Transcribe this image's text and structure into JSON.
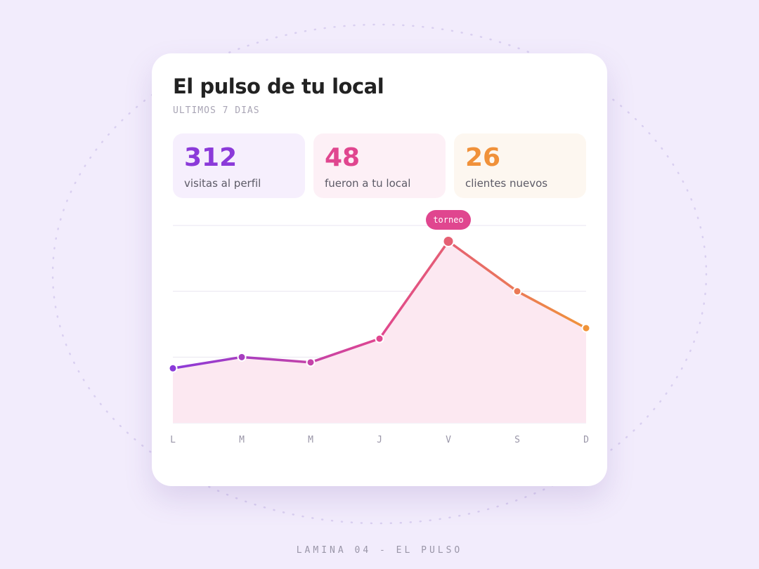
{
  "header": {
    "title": "El pulso de tu local",
    "subtitle": "ULTIMOS 7 DIAS"
  },
  "stats": [
    {
      "value": "312",
      "label": "visitas al perfil",
      "color": "#8b3ad9",
      "background": "#f6effd"
    },
    {
      "value": "48",
      "label": "fueron a tu local",
      "color": "#e0468f",
      "background": "#fdf0f6"
    },
    {
      "value": "26",
      "label": "clientes nuevos",
      "color": "#f0913a",
      "background": "#fdf7f0"
    }
  ],
  "chart_data": {
    "type": "line",
    "categories": [
      "L",
      "M",
      "M",
      "J",
      "V",
      "S",
      "D"
    ],
    "values": [
      0.83,
      1.0,
      0.92,
      1.28,
      2.76,
      2.0,
      1.44
    ],
    "colors": [
      "#8b3ad9",
      "#e0468f",
      "#f0943a"
    ],
    "area_color": "#fce8f1",
    "ylim": [
      0,
      3
    ],
    "yticks": [
      0,
      1,
      2,
      3
    ],
    "grid": true,
    "annotation": {
      "text": "torneo",
      "x": "V",
      "color": "#e0468f"
    }
  },
  "footer": "LAMINA 04 - EL PULSO"
}
